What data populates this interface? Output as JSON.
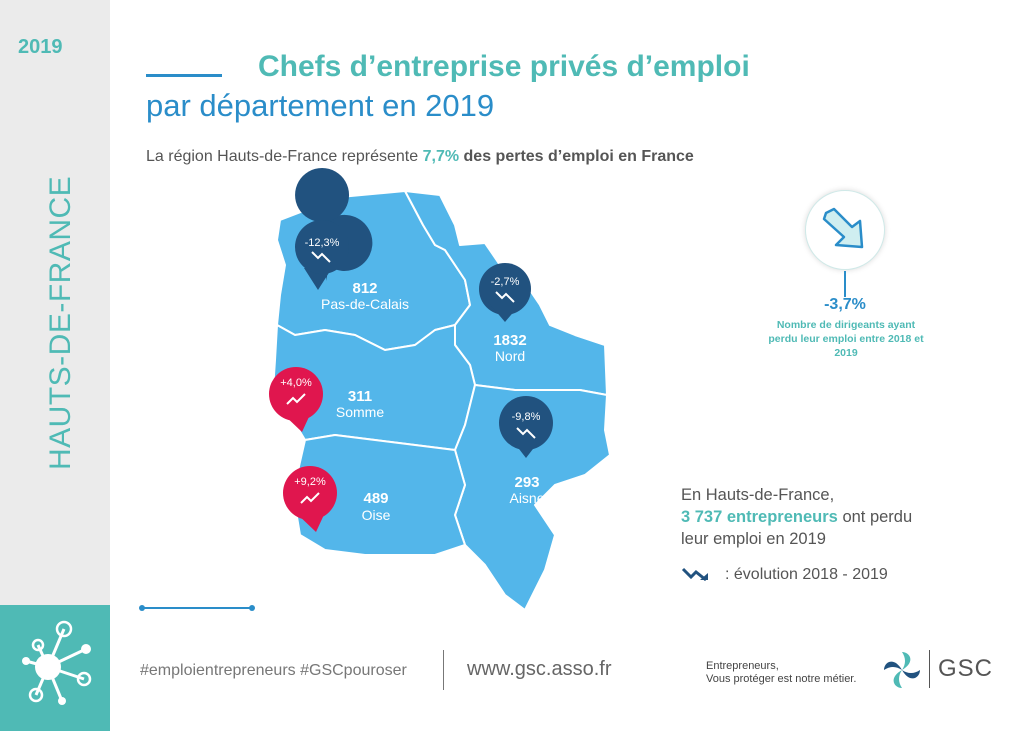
{
  "sidebar": {
    "year": "2019",
    "region": "HAUTS-DE-FRANCE",
    "accent": "#4fbab5"
  },
  "header": {
    "title": "Chefs d’entreprise privés d’emploi",
    "subtitle": "par département en 2019"
  },
  "region_stat": {
    "prefix": "La région Hauts-de-France représente",
    "percent": "7,7%",
    "suffix": "des pertes d’emploi en France"
  },
  "departments": [
    {
      "name": "Pas-de-Calais",
      "count": "812",
      "evolution": "-12,3%",
      "trend": "down",
      "color": "#21527f"
    },
    {
      "name": "Nord",
      "count": "1832",
      "evolution": "-2,7%",
      "trend": "down",
      "color": "#21527f"
    },
    {
      "name": "Somme",
      "count": "311",
      "evolution": "+4,0%",
      "trend": "up",
      "color": "#e0164e"
    },
    {
      "name": "Aisne",
      "count": "293",
      "evolution": "-9,8%",
      "trend": "down",
      "color": "#21527f"
    },
    {
      "name": "Oise",
      "count": "489",
      "evolution": "+9,2%",
      "trend": "up",
      "color": "#e0164e"
    }
  ],
  "map_color": "#53b6ea",
  "kpi": {
    "icon": "trend-down-arrow-icon",
    "value": "-3,7%",
    "desc": "Nombre de dirigeants ayant perdu leur emploi entre 2018 et 2019"
  },
  "summary": {
    "line1": "En Hauts-de-France,",
    "highlight": "3 737 entrepreneurs",
    "rest1": "ont perdu",
    "line3": "leur emploi en 2019"
  },
  "legend": {
    "icon": "trend-arrow-icon",
    "label": ": évolution 2018 - 2019"
  },
  "footer": {
    "hashtags": "#emploientrepreneurs #GSCpouroser",
    "website": "www.gsc.asso.fr",
    "tagline_1": "Entrepreneurs,",
    "tagline_2": "Vous protéger est notre métier.",
    "logo_text": "GSC"
  }
}
